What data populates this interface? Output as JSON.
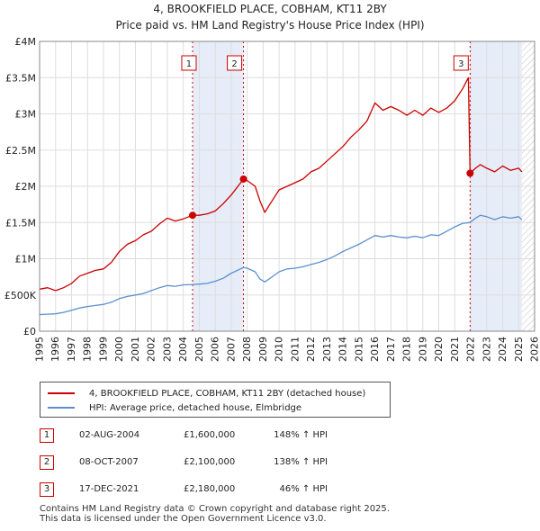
{
  "chart_data": {
    "type": "line",
    "title": "4, BROOKFIELD PLACE, COBHAM, KT11 2BY",
    "subtitle": "Price paid vs. HM Land Registry's House Price Index (HPI)",
    "xlim": [
      1995,
      2026
    ],
    "ylim": [
      0,
      4000000
    ],
    "x_ticks": [
      "1995",
      "1996",
      "1997",
      "1998",
      "1999",
      "2000",
      "2001",
      "2002",
      "2003",
      "2004",
      "2005",
      "2006",
      "2007",
      "2008",
      "2009",
      "2010",
      "2011",
      "2012",
      "2013",
      "2014",
      "2015",
      "2016",
      "2017",
      "2018",
      "2019",
      "2020",
      "2021",
      "2022",
      "2023",
      "2024",
      "2025",
      "2026"
    ],
    "y_ticks": [
      {
        "value": 0,
        "label": "£0"
      },
      {
        "value": 500000,
        "label": "£500K"
      },
      {
        "value": 1000000,
        "label": "£1M"
      },
      {
        "value": 1500000,
        "label": "£1.5M"
      },
      {
        "value": 2000000,
        "label": "£2M"
      },
      {
        "value": 2500000,
        "label": "£2.5M"
      },
      {
        "value": 3000000,
        "label": "£3M"
      },
      {
        "value": 3500000,
        "label": "£3.5M"
      },
      {
        "value": 4000000,
        "label": "£4M"
      }
    ],
    "grid": true,
    "shaded_periods": [
      [
        2004.58,
        2007.77
      ],
      [
        2021.96,
        2025.2
      ]
    ],
    "future_hatch_from": 2025.2,
    "series": [
      {
        "name": "4, BROOKFIELD PLACE, COBHAM, KT11 2BY (detached house)",
        "color": "#cc0000",
        "points": [
          [
            1995.0,
            580000
          ],
          [
            1995.5,
            600000
          ],
          [
            1996.0,
            560000
          ],
          [
            1996.5,
            600000
          ],
          [
            1997.0,
            660000
          ],
          [
            1997.5,
            760000
          ],
          [
            1998.0,
            800000
          ],
          [
            1998.5,
            840000
          ],
          [
            1999.0,
            860000
          ],
          [
            1999.5,
            950000
          ],
          [
            2000.0,
            1100000
          ],
          [
            2000.5,
            1200000
          ],
          [
            2001.0,
            1250000
          ],
          [
            2001.5,
            1330000
          ],
          [
            2002.0,
            1380000
          ],
          [
            2002.5,
            1480000
          ],
          [
            2003.0,
            1560000
          ],
          [
            2003.5,
            1520000
          ],
          [
            2004.0,
            1550000
          ],
          [
            2004.58,
            1600000
          ],
          [
            2005.0,
            1600000
          ],
          [
            2005.5,
            1620000
          ],
          [
            2006.0,
            1660000
          ],
          [
            2006.5,
            1760000
          ],
          [
            2007.0,
            1880000
          ],
          [
            2007.77,
            2100000
          ],
          [
            2008.0,
            2080000
          ],
          [
            2008.5,
            2000000
          ],
          [
            2008.8,
            1800000
          ],
          [
            2009.1,
            1640000
          ],
          [
            2009.5,
            1780000
          ],
          [
            2010.0,
            1950000
          ],
          [
            2010.5,
            2000000
          ],
          [
            2011.0,
            2050000
          ],
          [
            2011.5,
            2100000
          ],
          [
            2012.0,
            2200000
          ],
          [
            2012.5,
            2250000
          ],
          [
            2013.0,
            2350000
          ],
          [
            2013.5,
            2450000
          ],
          [
            2014.0,
            2550000
          ],
          [
            2014.5,
            2680000
          ],
          [
            2015.0,
            2780000
          ],
          [
            2015.5,
            2900000
          ],
          [
            2016.0,
            3150000
          ],
          [
            2016.5,
            3050000
          ],
          [
            2017.0,
            3100000
          ],
          [
            2017.5,
            3050000
          ],
          [
            2018.0,
            2980000
          ],
          [
            2018.5,
            3050000
          ],
          [
            2019.0,
            2980000
          ],
          [
            2019.5,
            3080000
          ],
          [
            2020.0,
            3020000
          ],
          [
            2020.5,
            3080000
          ],
          [
            2021.0,
            3180000
          ],
          [
            2021.5,
            3350000
          ],
          [
            2021.85,
            3500000
          ],
          [
            2021.96,
            2180000
          ],
          [
            2022.3,
            2250000
          ],
          [
            2022.6,
            2300000
          ],
          [
            2023.0,
            2250000
          ],
          [
            2023.5,
            2200000
          ],
          [
            2024.0,
            2280000
          ],
          [
            2024.5,
            2220000
          ],
          [
            2025.0,
            2250000
          ],
          [
            2025.2,
            2200000
          ]
        ]
      },
      {
        "name": "HPI: Average price, detached house, Elmbridge",
        "color": "#5b8fd0",
        "points": [
          [
            1995.0,
            230000
          ],
          [
            1995.5,
            235000
          ],
          [
            1996.0,
            240000
          ],
          [
            1996.5,
            260000
          ],
          [
            1997.0,
            290000
          ],
          [
            1997.5,
            320000
          ],
          [
            1998.0,
            340000
          ],
          [
            1998.5,
            355000
          ],
          [
            1999.0,
            370000
          ],
          [
            1999.5,
            400000
          ],
          [
            2000.0,
            450000
          ],
          [
            2000.5,
            480000
          ],
          [
            2001.0,
            500000
          ],
          [
            2001.5,
            520000
          ],
          [
            2002.0,
            560000
          ],
          [
            2002.5,
            600000
          ],
          [
            2003.0,
            630000
          ],
          [
            2003.5,
            620000
          ],
          [
            2004.0,
            640000
          ],
          [
            2004.58,
            645000
          ],
          [
            2005.0,
            650000
          ],
          [
            2005.5,
            660000
          ],
          [
            2006.0,
            690000
          ],
          [
            2006.5,
            730000
          ],
          [
            2007.0,
            800000
          ],
          [
            2007.77,
            880000
          ],
          [
            2008.0,
            870000
          ],
          [
            2008.5,
            820000
          ],
          [
            2008.8,
            720000
          ],
          [
            2009.1,
            680000
          ],
          [
            2009.5,
            740000
          ],
          [
            2010.0,
            820000
          ],
          [
            2010.5,
            860000
          ],
          [
            2011.0,
            870000
          ],
          [
            2011.5,
            890000
          ],
          [
            2012.0,
            920000
          ],
          [
            2012.5,
            950000
          ],
          [
            2013.0,
            990000
          ],
          [
            2013.5,
            1040000
          ],
          [
            2014.0,
            1100000
          ],
          [
            2014.5,
            1150000
          ],
          [
            2015.0,
            1200000
          ],
          [
            2015.5,
            1260000
          ],
          [
            2016.0,
            1320000
          ],
          [
            2016.5,
            1300000
          ],
          [
            2017.0,
            1320000
          ],
          [
            2017.5,
            1300000
          ],
          [
            2018.0,
            1290000
          ],
          [
            2018.5,
            1310000
          ],
          [
            2019.0,
            1290000
          ],
          [
            2019.5,
            1330000
          ],
          [
            2020.0,
            1320000
          ],
          [
            2020.5,
            1380000
          ],
          [
            2021.0,
            1440000
          ],
          [
            2021.5,
            1490000
          ],
          [
            2021.96,
            1500000
          ],
          [
            2022.3,
            1560000
          ],
          [
            2022.6,
            1600000
          ],
          [
            2023.0,
            1580000
          ],
          [
            2023.5,
            1540000
          ],
          [
            2024.0,
            1580000
          ],
          [
            2024.5,
            1560000
          ],
          [
            2025.0,
            1580000
          ],
          [
            2025.2,
            1540000
          ]
        ]
      }
    ],
    "sales": [
      {
        "num": "1",
        "x": 2004.58,
        "value": 1600000,
        "date": "02-AUG-2004",
        "price": "£1,600,000",
        "hpi": "148% ↑ HPI"
      },
      {
        "num": "2",
        "x": 2007.77,
        "value": 2100000,
        "date": "08-OCT-2007",
        "price": "£2,100,000",
        "hpi": "138% ↑ HPI"
      },
      {
        "num": "3",
        "x": 2021.96,
        "value": 2180000,
        "date": "17-DEC-2021",
        "price": "£2,180,000",
        "hpi": "46% ↑ HPI"
      }
    ]
  },
  "legend": {
    "property_label": "4, BROOKFIELD PLACE, COBHAM, KT11 2BY (detached house)",
    "hpi_label": "HPI: Average price, detached house, Elmbridge"
  },
  "footer": {
    "line1": "Contains HM Land Registry data © Crown copyright and database right 2025.",
    "line2": "This data is licensed under the Open Government Licence v3.0."
  }
}
